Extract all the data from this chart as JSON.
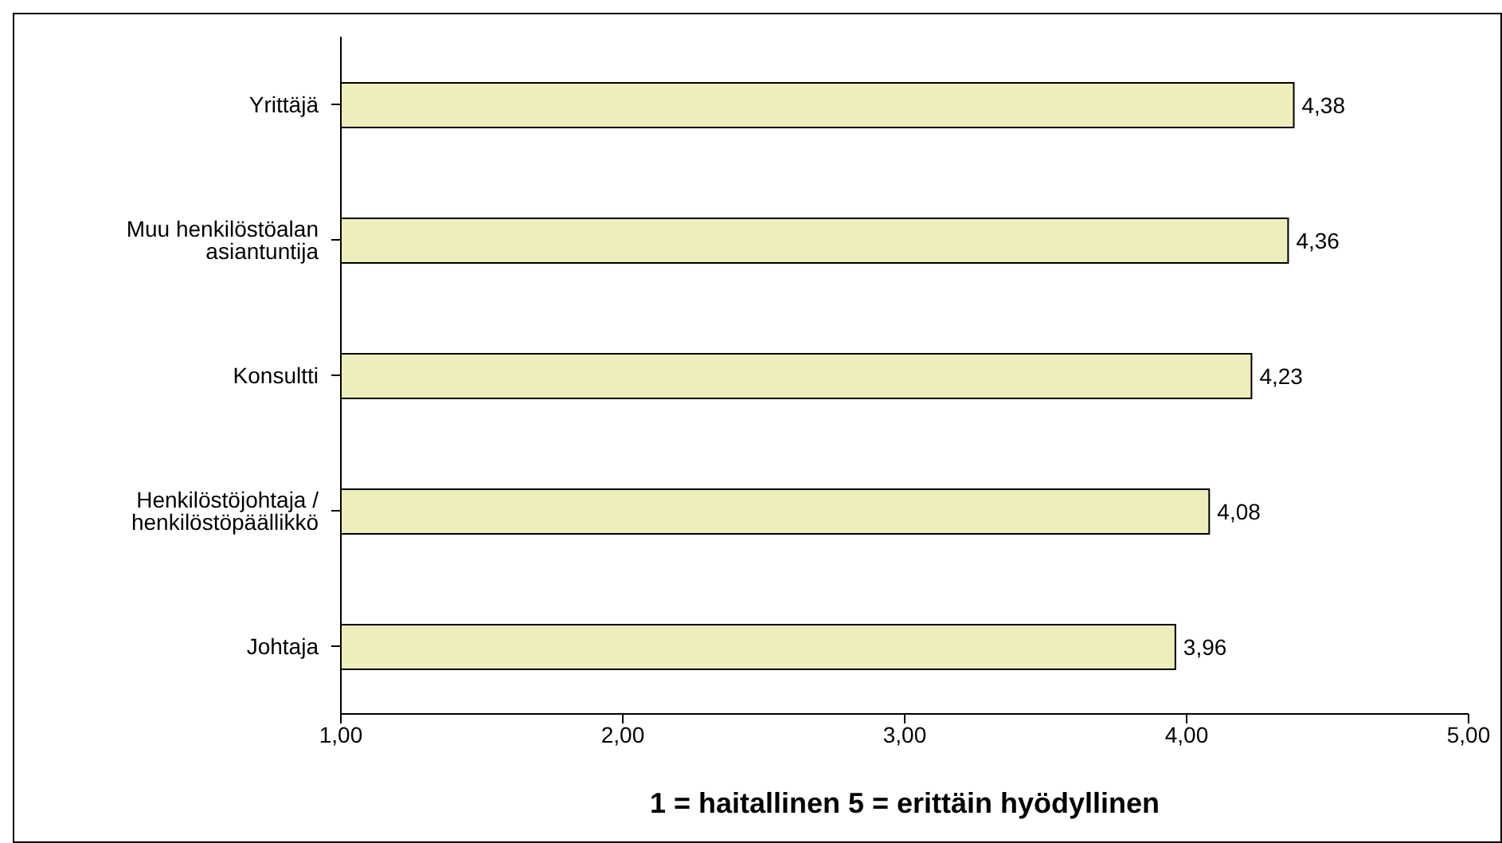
{
  "chart_data": {
    "type": "bar",
    "orientation": "horizontal",
    "xlabel": "1 = haitallinen  5 = erittäin hyödyllinen",
    "categories": [
      "Yrittäjä",
      "Muu henkilöstöalan asiantuntija",
      "Konsultti",
      "Henkilöstöjohtaja / henkilöstöpäällikkö",
      "Johtaja"
    ],
    "values": [
      4.38,
      4.36,
      4.23,
      4.08,
      3.96
    ],
    "value_labels": [
      "4,38",
      "4,36",
      "4,23",
      "4,08",
      "3,96"
    ],
    "color": "#eeeebb",
    "xlim": [
      1,
      5
    ],
    "xticks": [
      {
        "value": 1,
        "label": "1,00"
      },
      {
        "value": 2,
        "label": "2,00"
      },
      {
        "value": 3,
        "label": "3,00"
      },
      {
        "value": 4,
        "label": "4,00"
      },
      {
        "value": 5,
        "label": "5,00"
      }
    ],
    "grid": false,
    "legend": false
  }
}
